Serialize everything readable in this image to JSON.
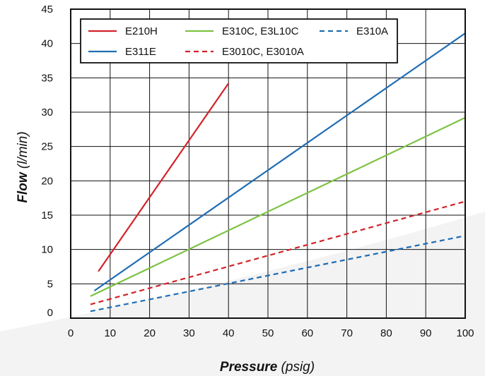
{
  "chart_data": {
    "type": "line",
    "title": "",
    "xlabel": "Pressure",
    "xlabel_unit": "(psig)",
    "ylabel": "Flow",
    "ylabel_unit": "(l/min)",
    "xlim": [
      0,
      100
    ],
    "ylim": [
      0,
      45
    ],
    "xticks": [
      "0",
      "10",
      "20",
      "30",
      "40",
      "50",
      "60",
      "70",
      "80",
      "90",
      "100"
    ],
    "yticks": [
      "0",
      "5",
      "10",
      "15",
      "20",
      "25",
      "30",
      "35",
      "40",
      "45"
    ],
    "grid": true,
    "legend_position": "top-left",
    "series": [
      {
        "name": "E210H",
        "color": "#d2232a",
        "dash": "solid",
        "points": [
          [
            7,
            6.8
          ],
          [
            40,
            34.2
          ]
        ]
      },
      {
        "name": "E311E",
        "color": "#1f6db4",
        "dash": "solid",
        "points": [
          [
            6,
            4.0
          ],
          [
            100,
            41.5
          ]
        ]
      },
      {
        "name": "E310C, E3L10C",
        "color": "#7cc242",
        "dash": "solid",
        "points": [
          [
            5,
            3.2
          ],
          [
            100,
            29.2
          ]
        ]
      },
      {
        "name": "E3010C, E3010A",
        "color": "#d2232a",
        "dash": "dashed",
        "points": [
          [
            5,
            2.0
          ],
          [
            100,
            17.0
          ]
        ]
      },
      {
        "name": "E310A",
        "color": "#1f6db4",
        "dash": "dashed",
        "points": [
          [
            5,
            1.0
          ],
          [
            100,
            12.0
          ]
        ]
      }
    ]
  }
}
